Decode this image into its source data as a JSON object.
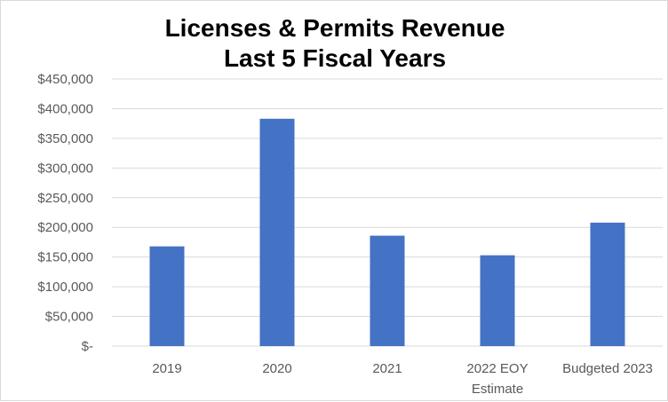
{
  "chart_data": {
    "type": "bar",
    "title_lines": [
      "Licenses & Permits Revenue",
      "Last 5 Fiscal Years"
    ],
    "categories": [
      [
        "2019"
      ],
      [
        "2020"
      ],
      [
        "2021"
      ],
      [
        "2022 EOY",
        "Estimate"
      ],
      [
        "Budgeted 2023"
      ]
    ],
    "values": [
      168000,
      383000,
      186000,
      153000,
      208000
    ],
    "ylim": [
      0,
      450000
    ],
    "ytick_values": [
      0,
      50000,
      100000,
      150000,
      200000,
      250000,
      300000,
      350000,
      400000,
      450000
    ],
    "ytick_labels": [
      "$-",
      "$50,000",
      "$100,000",
      "$150,000",
      "$200,000",
      "$250,000",
      "$300,000",
      "$350,000",
      "$400,000",
      "$450,000"
    ],
    "grid": true,
    "legend": "none",
    "bar_color": "#4472c4",
    "grid_color": "#d9d9d9"
  }
}
